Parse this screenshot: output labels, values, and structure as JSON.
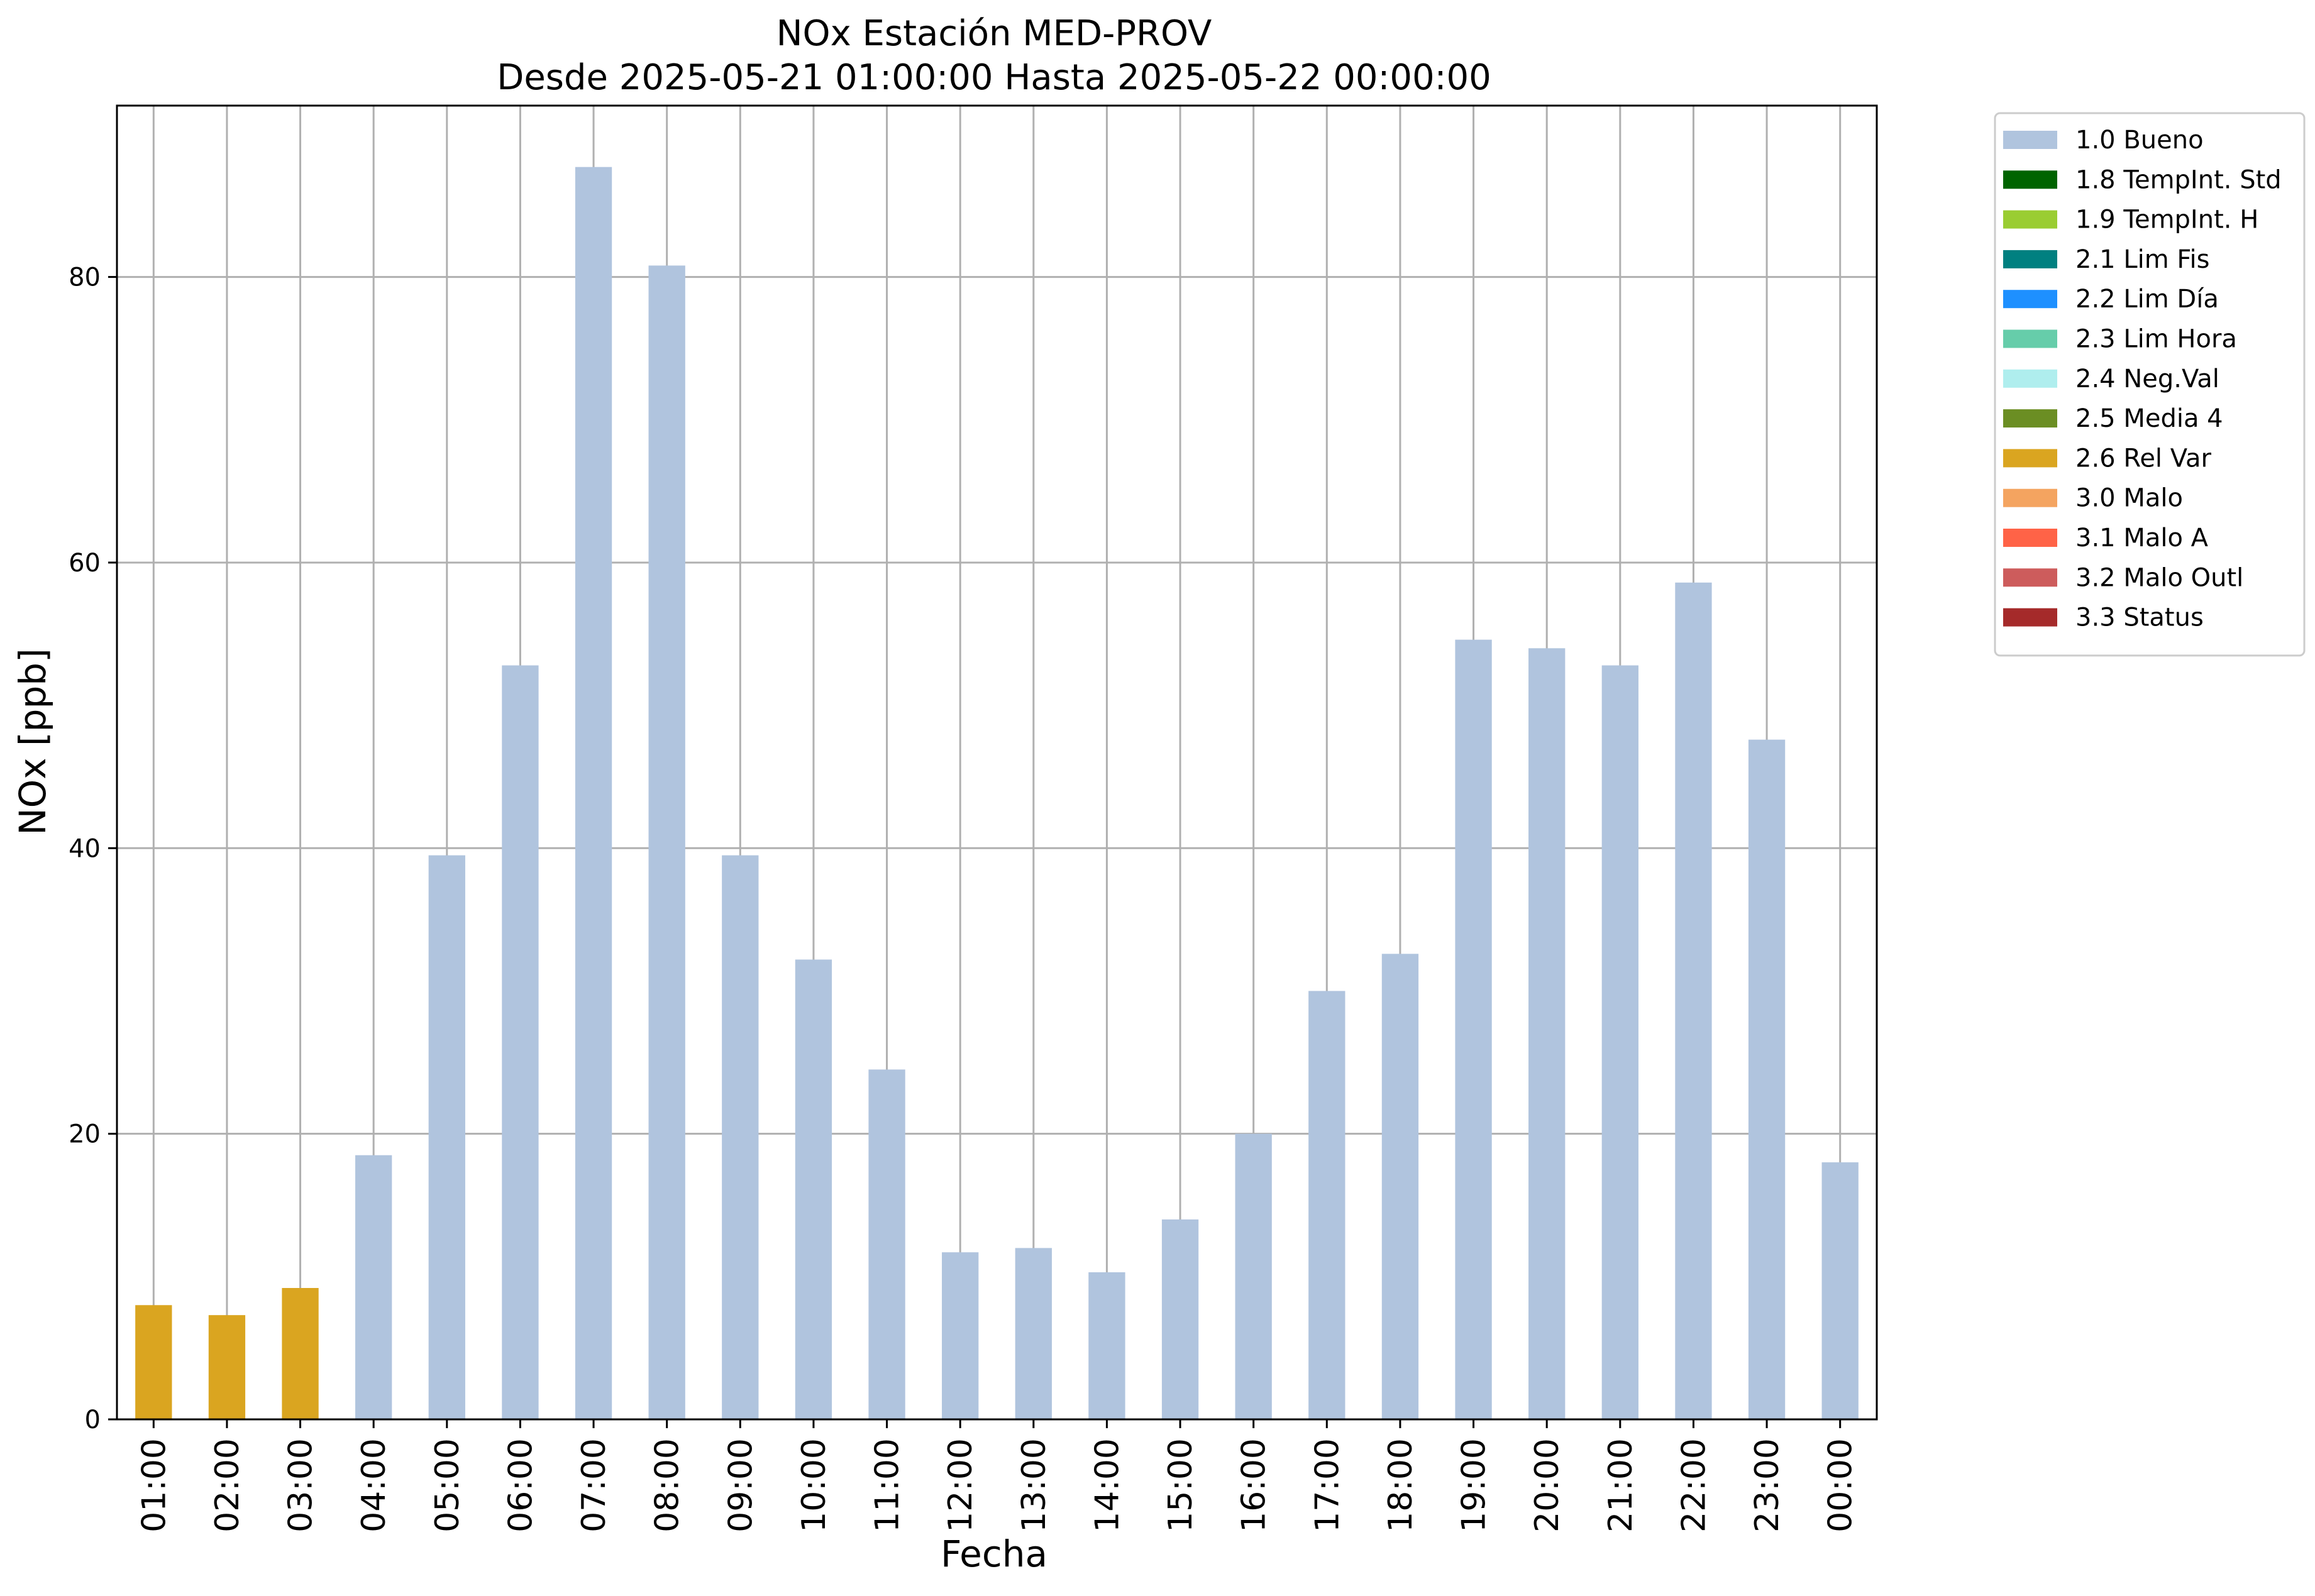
{
  "chart_data": {
    "type": "bar",
    "title": "NOx Estación MED-PROV",
    "subtitle": "Desde 2025-05-21 01:00:00 Hasta 2025-05-22 00:00:00",
    "xlabel": "Fecha",
    "ylabel": "NOx [ppb]",
    "ylim": [
      0,
      92
    ],
    "yticks": [
      0,
      20,
      40,
      60,
      80
    ],
    "grid": true,
    "legend_placement": "outside-upper-right",
    "categories": [
      "01:00",
      "02:00",
      "03:00",
      "04:00",
      "05:00",
      "06:00",
      "07:00",
      "08:00",
      "09:00",
      "10:00",
      "11:00",
      "12:00",
      "13:00",
      "14:00",
      "15:00",
      "16:00",
      "17:00",
      "18:00",
      "19:00",
      "20:00",
      "21:00",
      "22:00",
      "23:00",
      "00:00"
    ],
    "values": [
      8.0,
      7.3,
      9.2,
      18.5,
      39.5,
      52.8,
      87.7,
      80.8,
      39.5,
      32.2,
      24.5,
      11.7,
      12.0,
      10.3,
      14.0,
      20.0,
      30.0,
      32.6,
      54.6,
      54.0,
      52.8,
      58.6,
      47.6,
      18.0
    ],
    "flags": [
      "2.6 Rel Var",
      "2.6 Rel Var",
      "2.6 Rel Var",
      "1.0 Bueno",
      "1.0 Bueno",
      "1.0 Bueno",
      "1.0 Bueno",
      "1.0 Bueno",
      "1.0 Bueno",
      "1.0 Bueno",
      "1.0 Bueno",
      "1.0 Bueno",
      "1.0 Bueno",
      "1.0 Bueno",
      "1.0 Bueno",
      "1.0 Bueno",
      "1.0 Bueno",
      "1.0 Bueno",
      "1.0 Bueno",
      "1.0 Bueno",
      "1.0 Bueno",
      "1.0 Bueno",
      "1.0 Bueno",
      "1.0 Bueno"
    ],
    "legend": [
      {
        "name": "1.0 Bueno",
        "color": "#b0c4de"
      },
      {
        "name": "1.8 TempInt. Std",
        "color": "#006400"
      },
      {
        "name": "1.9 TempInt. H",
        "color": "#9acd32"
      },
      {
        "name": "2.1 Lim Fis",
        "color": "#008080"
      },
      {
        "name": "2.2 Lim Día",
        "color": "#1e90ff"
      },
      {
        "name": "2.3 Lim Hora",
        "color": "#66cdaa"
      },
      {
        "name": "2.4 Neg.Val",
        "color": "#afeeee"
      },
      {
        "name": "2.5 Media 4",
        "color": "#6b8e23"
      },
      {
        "name": "2.6 Rel Var",
        "color": "#daa520"
      },
      {
        "name": "3.0 Malo",
        "color": "#f4a460"
      },
      {
        "name": "3.1 Malo A",
        "color": "#ff6347"
      },
      {
        "name": "3.2 Malo Outl",
        "color": "#cd5c5c"
      },
      {
        "name": "3.3 Status",
        "color": "#a52a2a"
      }
    ]
  }
}
